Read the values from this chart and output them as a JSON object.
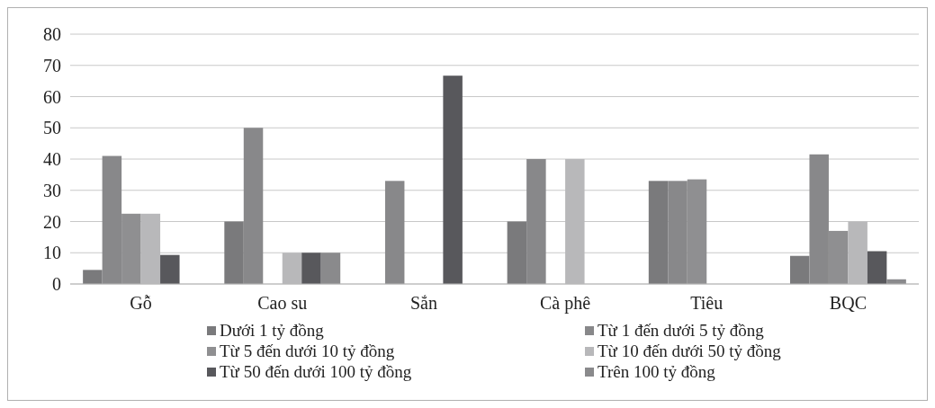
{
  "chart_data": {
    "type": "bar",
    "categories": [
      "Gỗ",
      "Cao su",
      "Sắn",
      "Cà phê",
      "Tiêu",
      "BQC"
    ],
    "series": [
      {
        "name": "Dưới 1 tỷ đồng",
        "color": "#7a7a7c",
        "values": [
          4.5,
          20,
          null,
          20,
          33,
          9
        ]
      },
      {
        "name": "Từ 1 đến dưới 5 tỷ đồng",
        "color": "#88888a",
        "values": [
          41,
          50,
          33,
          40,
          33,
          41.5
        ]
      },
      {
        "name": "Từ 5 đến dưới 10 tỷ đồng",
        "color": "#8f8f91",
        "values": [
          22.5,
          null,
          null,
          null,
          33.5,
          17
        ]
      },
      {
        "name": "Từ 10 đến dưới 50 tỷ đồng",
        "color": "#b8b8ba",
        "values": [
          22.5,
          10,
          null,
          40,
          null,
          20
        ]
      },
      {
        "name": "Từ 50 đến dưới 100 tỷ đồng",
        "color": "#58585c",
        "values": [
          9.3,
          10,
          66.7,
          null,
          null,
          10.5
        ]
      },
      {
        "name": "Trên 100 tỷ đồng",
        "color": "#8a8a8c",
        "values": [
          null,
          10,
          null,
          null,
          null,
          1.5
        ]
      }
    ],
    "ylim": [
      0,
      80
    ],
    "yticks": [
      0,
      10,
      20,
      30,
      40,
      50,
      60,
      70,
      80
    ],
    "grid": "y",
    "legend": "bottom"
  }
}
